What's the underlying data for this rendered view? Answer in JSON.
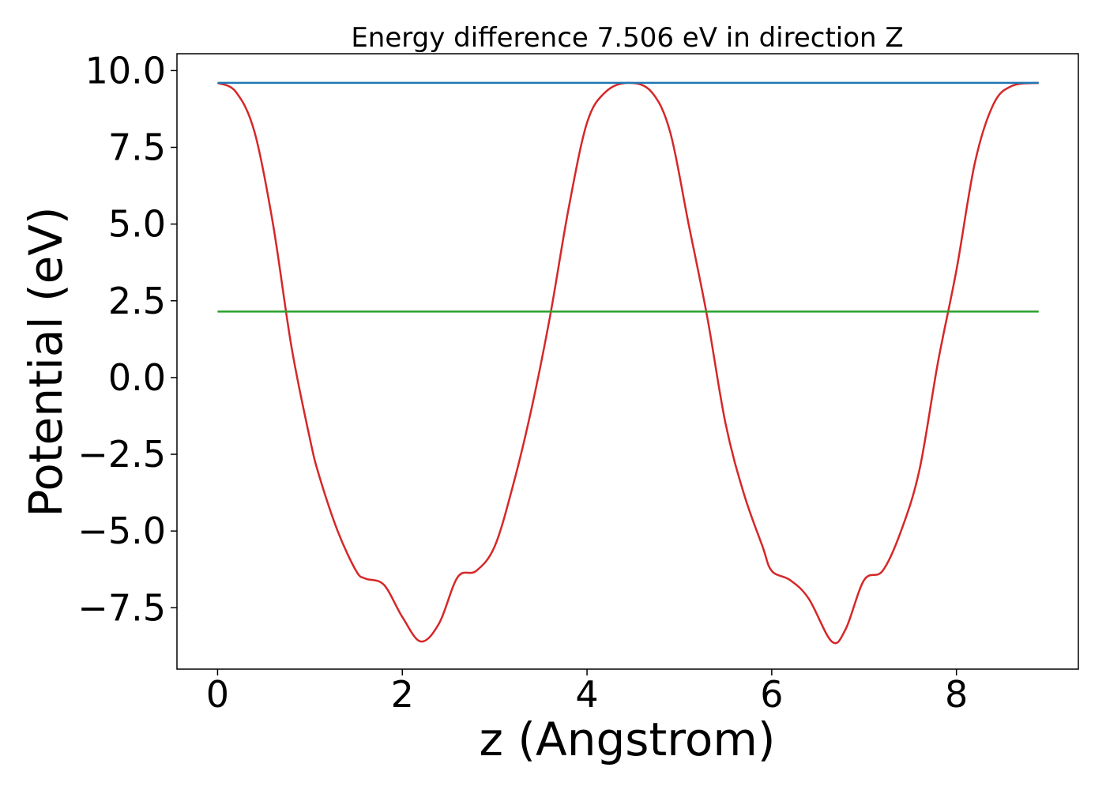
{
  "chart_data": {
    "type": "line",
    "title": "Energy difference 7.506 eV in direction Z",
    "xlabel": "z (Angstrom)",
    "ylabel": "Potential (eV)",
    "xlim": [
      -0.44,
      9.32
    ],
    "ylim": [
      -9.5,
      10.55
    ],
    "x_ticks": [
      0,
      2,
      4,
      6,
      8
    ],
    "x_tick_labels": [
      "0",
      "2",
      "4",
      "6",
      "8"
    ],
    "y_ticks": [
      -7.5,
      -5.0,
      -2.5,
      0.0,
      2.5,
      5.0,
      7.5,
      10.0
    ],
    "y_tick_labels": [
      "−7.5",
      "−5.0",
      "−2.5",
      "0.0",
      "2.5",
      "5.0",
      "7.5",
      "10.0"
    ],
    "grid": false,
    "series": [
      {
        "color": "#d62728",
        "x": [
          0.0,
          0.2,
          0.4,
          0.6,
          0.8,
          1.0,
          1.1,
          1.3,
          1.5,
          1.6,
          1.8,
          2.0,
          2.2,
          2.4,
          2.6,
          2.8,
          3.0,
          3.2,
          3.4,
          3.6,
          3.8,
          4.0,
          4.2,
          4.45,
          4.7,
          4.9,
          5.1,
          5.3,
          5.5,
          5.7,
          5.9,
          6.0,
          6.2,
          6.4,
          6.65,
          6.8,
          7.0,
          7.2,
          7.4,
          7.6,
          7.8,
          8.0,
          8.2,
          8.4,
          8.6,
          8.89
        ],
        "y": [
          9.6,
          9.3,
          8.0,
          5.0,
          1.0,
          -2.0,
          -3.2,
          -5.0,
          -6.3,
          -6.55,
          -6.75,
          -7.8,
          -8.6,
          -8.0,
          -6.5,
          -6.3,
          -5.5,
          -3.5,
          -1.0,
          2.0,
          5.5,
          8.3,
          9.3,
          9.6,
          9.3,
          8.0,
          5.0,
          2.0,
          -1.5,
          -3.8,
          -5.5,
          -6.3,
          -6.6,
          -7.2,
          -8.6,
          -8.2,
          -6.6,
          -6.3,
          -5.0,
          -3.0,
          0.5,
          3.5,
          7.0,
          8.9,
          9.5,
          9.6
        ]
      },
      {
        "color": "#1f77b4",
        "x": [
          0.0,
          8.89
        ],
        "y": [
          9.6,
          9.6
        ]
      },
      {
        "color": "#2ca02c",
        "x": [
          0.0,
          8.89
        ],
        "y": [
          2.15,
          2.15
        ]
      }
    ]
  }
}
